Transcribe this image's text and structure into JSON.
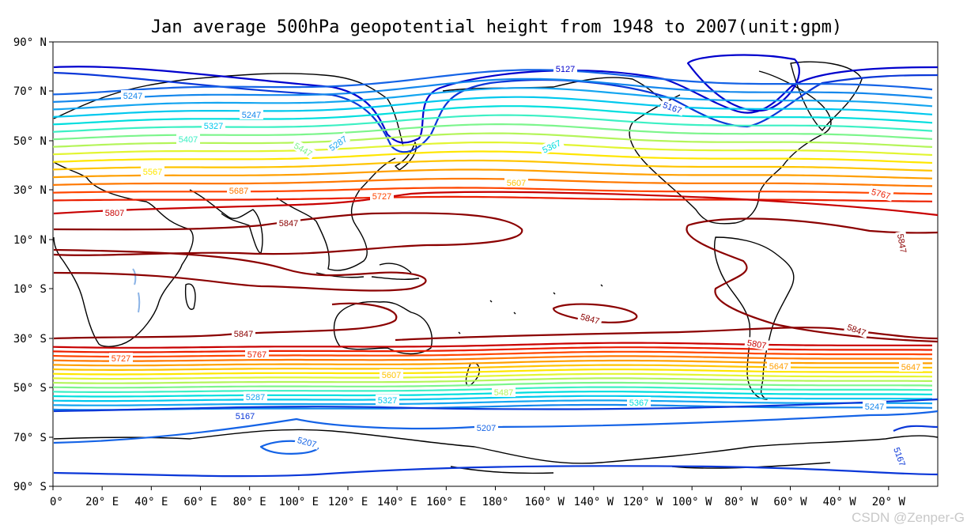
{
  "chart_data": {
    "type": "contour",
    "title": "Jan average 500hPa geopotential height from 1948 to 2007(unit:gpm)",
    "units": "gpm",
    "projection": "PlateCarree, central longitude 180",
    "lon_range": [
      0,
      360
    ],
    "lat_range": [
      -90,
      90
    ],
    "y_ticks": [
      "90° N",
      "70° N",
      "50° N",
      "30° N",
      "10° N",
      "10° S",
      "30° S",
      "50° S",
      "70° S",
      "90° S"
    ],
    "x_ticks": [
      "0°",
      "20° E",
      "40° E",
      "60° E",
      "80° E",
      "100° E",
      "120° E",
      "140° E",
      "160° E",
      "180°",
      "160° W",
      "140° W",
      "120° W",
      "100° W",
      "80° W",
      "60° W",
      "40° W",
      "20° W"
    ],
    "colors": {
      "5127": "#0000cd",
      "5167": "#0a37d8",
      "5207": "#1463e6",
      "5247": "#1487ec",
      "5287": "#14a5f0",
      "5327": "#00c8ee",
      "5367": "#00dede",
      "5407": "#3cf0c4",
      "5447": "#7cf58c",
      "5487": "#b4f55a",
      "5527": "#e2f532",
      "5567": "#ffe600",
      "5607": "#ffc400",
      "5647": "#ff9f00",
      "5687": "#ff7800",
      "5727": "#ff4600",
      "5767": "#eb1e00",
      "5807": "#c80000",
      "5847": "#8b0000",
      "coast": "#000000",
      "lake": "#8cb4e6"
    },
    "contour_labels": [
      {
        "text": "5127"
      },
      {
        "text": "5167"
      },
      {
        "text": "5207"
      },
      {
        "text": "5247"
      },
      {
        "text": "5287"
      },
      {
        "text": "5327"
      },
      {
        "text": "5367"
      },
      {
        "text": "5407"
      },
      {
        "text": "5447"
      },
      {
        "text": "5487"
      },
      {
        "text": "5567"
      },
      {
        "text": "5607"
      },
      {
        "text": "5647"
      },
      {
        "text": "5687"
      },
      {
        "text": "5727"
      },
      {
        "text": "5767"
      },
      {
        "text": "5807"
      },
      {
        "text": "5847"
      }
    ]
  },
  "watermark": "CSDN @Zenper-G"
}
